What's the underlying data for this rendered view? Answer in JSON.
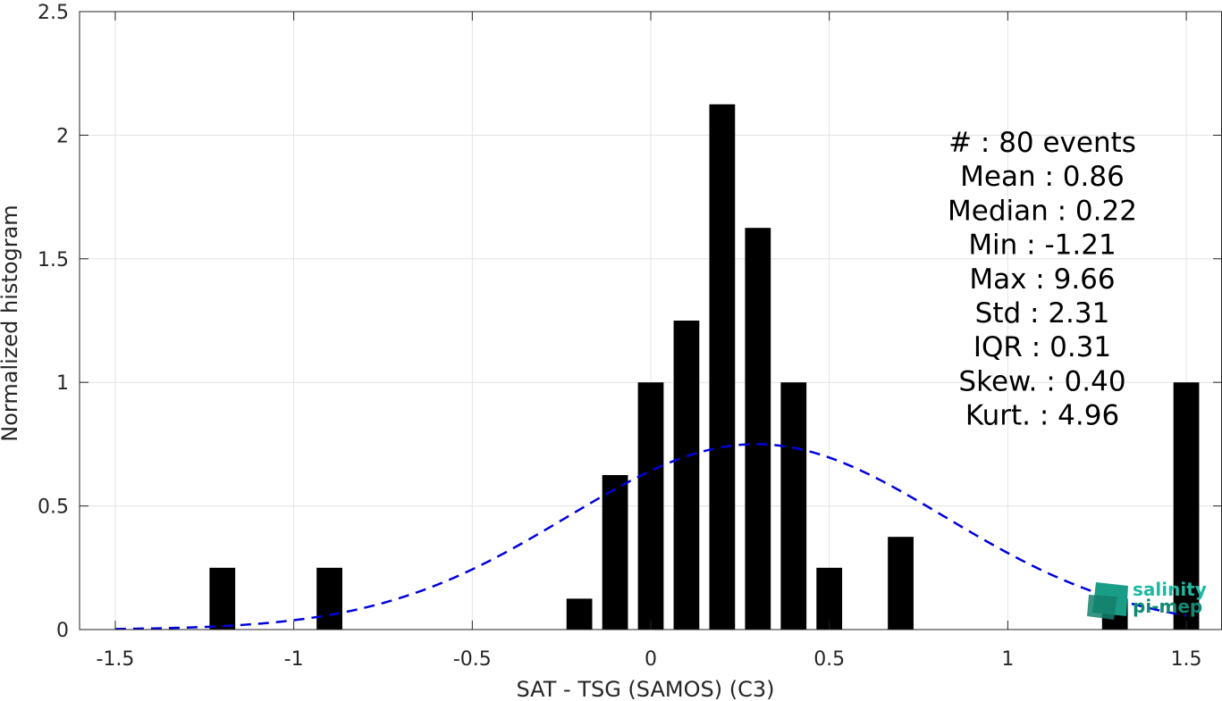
{
  "chart_data": {
    "type": "bar",
    "xlabel": "SAT - TSG (SAMOS) (C3)",
    "ylabel": "Normalized histogram",
    "xlim": [
      -1.6,
      1.6
    ],
    "ylim": [
      0,
      2.5
    ],
    "x_ticks": [
      -1.5,
      -1,
      -0.5,
      0,
      0.5,
      1,
      1.5
    ],
    "x_tick_labels": [
      "-1.5",
      "-1",
      "-0.5",
      "0",
      "0.5",
      "1",
      "1.5"
    ],
    "y_ticks": [
      0,
      0.5,
      1,
      1.5,
      2,
      2.5
    ],
    "y_tick_labels": [
      "0",
      "0.5",
      "1",
      "1.5",
      "2",
      "2.5"
    ],
    "grid": true,
    "bin_width": 0.1,
    "bars": [
      {
        "x": -1.2,
        "value": 0.25
      },
      {
        "x": -0.9,
        "value": 0.25
      },
      {
        "x": -0.2,
        "value": 0.125
      },
      {
        "x": -0.1,
        "value": 0.625
      },
      {
        "x": 0.0,
        "value": 1.0
      },
      {
        "x": 0.1,
        "value": 1.25
      },
      {
        "x": 0.2,
        "value": 2.125
      },
      {
        "x": 0.3,
        "value": 1.625
      },
      {
        "x": 0.4,
        "value": 1.0
      },
      {
        "x": 0.5,
        "value": 0.25
      },
      {
        "x": 0.7,
        "value": 0.375
      },
      {
        "x": 1.3,
        "value": 0.125
      },
      {
        "x": 1.5,
        "value": 1.0
      }
    ],
    "bar_color": "#000000",
    "fit_curve": {
      "style": "dashed",
      "color": "#0000dd",
      "mean": 0.295,
      "sigma": 0.53,
      "peak": 0.75,
      "x_range": [
        -1.5,
        1.5
      ]
    },
    "stats": [
      "#  : 80 events",
      "Mean : 0.86",
      "Median : 0.22",
      "Min : -1.21",
      "Max : 9.66",
      "Std : 2.31",
      "IQR : 0.31",
      "Skew. : 0.40",
      "Kurt. : 4.96"
    ]
  },
  "logo": {
    "line1": "salinity",
    "line2": "pi-mep",
    "color1": "#1fb8a2",
    "color2": "#128a73"
  }
}
